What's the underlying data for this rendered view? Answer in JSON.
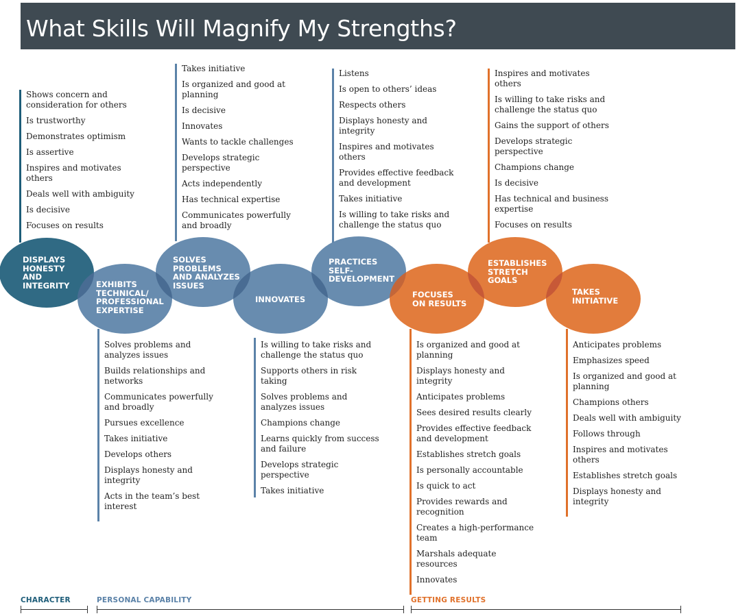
{
  "title": "What Skills Will Magnify My Strengths?",
  "colors": {
    "title_bg": "#3f4a52",
    "dark_teal": "#1e5d79",
    "blue": "#5b82a8",
    "orange": "#e0712b",
    "character_label": "#1e5d79",
    "personal_label": "#5b82a8",
    "results_label": "#e0712b"
  },
  "circles": [
    {
      "lines": [
        "DISPLAYS",
        "HONESTY",
        "AND",
        "INTEGRITY"
      ],
      "color": "#1e5d79"
    },
    {
      "lines": [
        "EXHIBITS",
        "TECHNICAL/",
        "PROFESSIONAL",
        "EXPERTISE"
      ],
      "color": "#5b82a8"
    },
    {
      "lines": [
        "SOLVES",
        "PROBLEMS",
        "AND ANALYZES",
        "ISSUES"
      ],
      "color": "#5b82a8"
    },
    {
      "lines": [
        "INNOVATES"
      ],
      "color": "#5b82a8"
    },
    {
      "lines": [
        "PRACTICES",
        "SELF-",
        "DEVELOPMENT"
      ],
      "color": "#5b82a8"
    },
    {
      "lines": [
        "FOCUSES",
        "ON RESULTS"
      ],
      "color": "#e0712b"
    },
    {
      "lines": [
        "ESTABLISHES",
        "STRETCH",
        "GOALS"
      ],
      "color": "#e0712b"
    },
    {
      "lines": [
        "TAKES",
        "INITIATIVE"
      ],
      "color": "#e0712b"
    }
  ],
  "lists": {
    "honesty": [
      "Shows concern and consideration for others",
      "Is trustworthy",
      "Demonstrates optimism",
      "Is assertive",
      "Inspires and motivates others",
      "Deals well with ambiguity",
      "Is decisive",
      "Focuses on results"
    ],
    "technical": [
      "Solves problems and analyzes issues",
      "Builds relationships and networks",
      "Communicates powerfully and broadly",
      "Pursues excellence",
      "Takes initiative",
      "Develops others",
      "Displays honesty and integrity",
      "Acts in the team’s best interest"
    ],
    "solves": [
      "Takes initiative",
      "Is organized and good at planning",
      "Is decisive",
      "Innovates",
      "Wants to tackle challenges",
      "Develops strategic perspective",
      "Acts independently",
      "Has technical expertise",
      "Communicates powerfully and broadly"
    ],
    "innovates": [
      "Is willing to take risks and challenge the status quo",
      "Supports others in risk taking",
      "Solves problems and analyzes issues",
      "Champions change",
      "Learns quickly from success and failure",
      "Develops strategic perspective",
      "Takes initiative"
    ],
    "practices": [
      "Listens",
      "Is open to others’ ideas",
      "Respects others",
      "Displays honesty and integrity",
      "Inspires and motivates others",
      "Provides effective feedback and development",
      "Takes initiative",
      "Is willing to take risks and challenge the status quo"
    ],
    "focuses": [
      "Is organized and good at planning",
      "Displays honesty and integrity",
      "Anticipates problems",
      "Sees desired results clearly",
      "Provides effective feedback and development",
      "Establishes stretch goals",
      "Is personally accountable",
      "Is quick to act",
      "Provides rewards and recognition",
      "Creates a high-performance team",
      "Marshals adequate resources",
      "Innovates"
    ],
    "establishes": [
      "Inspires and motivates others",
      "Is willing to take risks and challenge the status quo",
      "Gains the support of others",
      "Develops strategic perspective",
      "Champions change",
      "Is decisive",
      "Has technical and business expertise",
      "Focuses on results"
    ],
    "takes": [
      "Anticipates problems",
      "Emphasizes speed",
      "Is organized and good at planning",
      "Champions others",
      "Deals well with ambiguity",
      "Follows through",
      "Inspires and motivates others",
      "Establishes stretch goals",
      "Displays honesty and integrity"
    ]
  },
  "categories": {
    "character": "CHARACTER",
    "personal": "PERSONAL CAPABILITY",
    "results": "GETTING RESULTS"
  }
}
